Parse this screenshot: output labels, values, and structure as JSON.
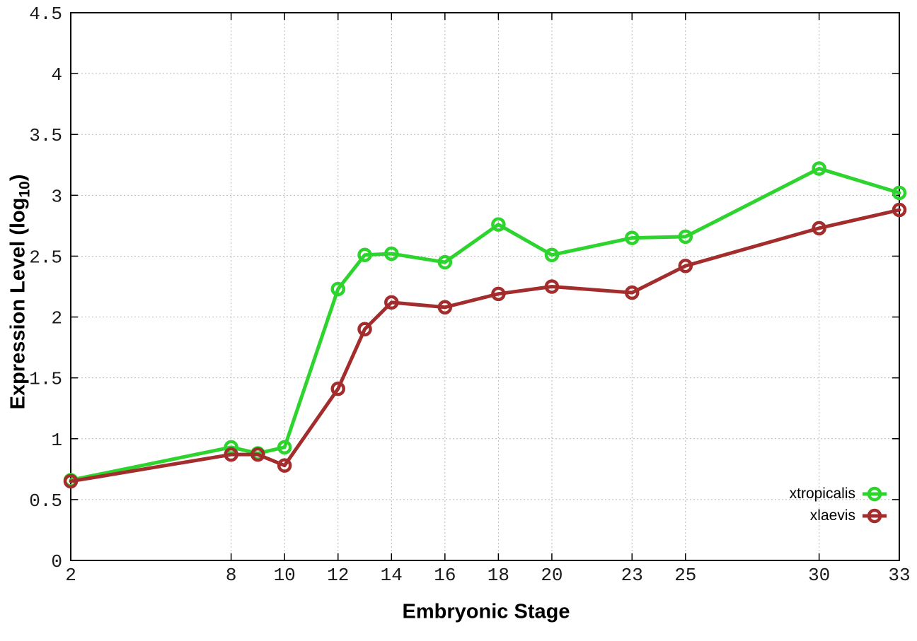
{
  "chart_data": {
    "type": "line",
    "title": "",
    "xlabel": "Embryonic Stage",
    "ylabel": "Expression Level (log10)",
    "ylabel_parts": {
      "prefix": "Expression Level (log",
      "subscript": "10",
      "suffix": ")"
    },
    "x": [
      2,
      8,
      9,
      10,
      12,
      13,
      14,
      16,
      18,
      20,
      23,
      25,
      30,
      33
    ],
    "series": [
      {
        "name": "xtropicalis",
        "color": "#2dd42d",
        "values": [
          0.66,
          0.93,
          0.88,
          0.93,
          2.23,
          2.51,
          2.52,
          2.45,
          2.76,
          2.51,
          2.65,
          2.66,
          3.22,
          3.02
        ]
      },
      {
        "name": "xlaevis",
        "color": "#a32c2c",
        "values": [
          0.65,
          0.87,
          0.87,
          0.78,
          1.41,
          1.9,
          2.12,
          2.08,
          2.19,
          2.25,
          2.2,
          2.42,
          2.73,
          2.88
        ]
      }
    ],
    "xlim": [
      2,
      33
    ],
    "ylim": [
      0,
      4.5
    ],
    "x_ticks": [
      2,
      8,
      10,
      12,
      14,
      16,
      18,
      20,
      23,
      25,
      30,
      33
    ],
    "x_tick_labels": [
      "2",
      "8",
      "10",
      "12",
      "14",
      "16",
      "18",
      "20",
      "23",
      "25",
      "30",
      "33"
    ],
    "y_ticks": [
      0,
      0.5,
      1,
      1.5,
      2,
      2.5,
      3,
      3.5,
      4,
      4.5
    ],
    "y_tick_labels": [
      "0",
      "0.5",
      "1",
      "1.5",
      "2",
      "2.5",
      "3",
      "3.5",
      "4",
      "4.5"
    ],
    "grid": true,
    "legend_position": "inside-bottom-right",
    "colors": {
      "axis": "#000000",
      "grid": "#b8b8b8",
      "tick_label": "#1a1a1a",
      "background": "#ffffff"
    }
  },
  "legend": {
    "items": [
      {
        "label": "xtropicalis",
        "color": "#2dd42d"
      },
      {
        "label": "xlaevis",
        "color": "#a32c2c"
      }
    ]
  }
}
